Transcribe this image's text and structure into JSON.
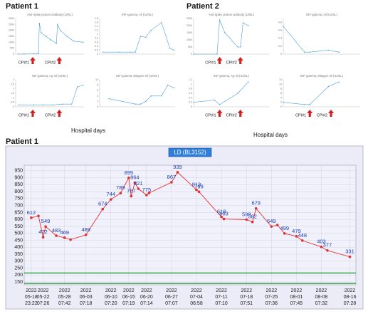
{
  "headings": [
    "Patient 1",
    "Patient 2",
    "Patient 1"
  ],
  "x_axis_notes": [
    "Hospital days",
    "Hospital days"
  ],
  "chart_data": [
    {
      "type": "line",
      "title": "Anti-Spike protein antibody (U/mL)",
      "color": "#4a9fd8",
      "x": [
        4,
        10,
        20,
        25,
        26,
        28,
        33,
        38,
        44,
        45,
        48,
        55,
        62,
        72
      ],
      "values": [
        0,
        10,
        20,
        40,
        2600,
        1800,
        1500,
        1200,
        900,
        2500,
        2000,
        1500,
        1100,
        1000
      ],
      "xlim": [
        1,
        73
      ],
      "ylim": [
        0,
        3000
      ],
      "yticks": [
        0,
        500,
        1000,
        1500,
        2000,
        2500,
        3000
      ],
      "annotations": [
        {
          "label": "CPI#1",
          "x": 19
        },
        {
          "label": "CPI#2",
          "x": 47
        }
      ]
    },
    {
      "type": "line",
      "title": "INF-gamma, nil (IU/mL)",
      "color": "#4a9fd8",
      "x": [
        4,
        20,
        30,
        35,
        40,
        45,
        50,
        60,
        68,
        72
      ],
      "values": [
        0.1,
        0.1,
        0.1,
        0.1,
        0.9,
        0.85,
        1.2,
        1.6,
        0.3,
        0.2
      ],
      "xlim": [
        1,
        73
      ],
      "ylim": [
        0,
        1.8
      ],
      "yticks": [
        0,
        0.2,
        0.4,
        0.6,
        0.8,
        1,
        1.2,
        1.4,
        1.6,
        1.8
      ]
    },
    {
      "type": "line",
      "title": "INF-gamma, Ag-nil (IU/mL)",
      "color": "#4a9fd8",
      "x": [
        4,
        20,
        30,
        40,
        50,
        60,
        66,
        72
      ],
      "values": [
        0.2,
        0.2,
        0.2,
        0.2,
        0.3,
        0.3,
        2.2,
        2.4
      ],
      "xlim": [
        1,
        73
      ],
      "ylim": [
        0,
        3
      ],
      "yticks": [
        0,
        0.5,
        1,
        1.5,
        2,
        2.5,
        3
      ],
      "annotations": [
        {
          "label": "CPI#1",
          "x": 19
        },
        {
          "label": "CPI#2",
          "x": 47
        }
      ]
    },
    {
      "type": "line",
      "title": "INF-gamma, Mitogen-nil (IU/mL)",
      "color": "#4a9fd8",
      "x": [
        10,
        35,
        40,
        45,
        50,
        60,
        66,
        72
      ],
      "values": [
        3,
        1,
        1,
        2,
        4,
        4,
        8,
        7
      ],
      "xlim": [
        1,
        73
      ],
      "ylim": [
        0,
        10
      ],
      "yticks": [
        0,
        2,
        4,
        6,
        8,
        10
      ]
    },
    {
      "type": "line",
      "title": "Anti-Spike protein antibody (U/mL)",
      "color": "#4a9fd8",
      "x": [
        1,
        10,
        11,
        13,
        18,
        19,
        20,
        22
      ],
      "values": [
        0,
        0,
        2400,
        1500,
        500,
        500,
        2200,
        2000
      ],
      "xlim": [
        1,
        30
      ],
      "ylim": [
        0,
        2500
      ],
      "yticks": [
        0,
        500,
        1000,
        1500,
        2000,
        2500
      ],
      "annotations": [
        {
          "label": "CPI#1",
          "x": 11
        },
        {
          "label": "CPI#2",
          "x": 19
        }
      ]
    },
    {
      "type": "line",
      "title": "INF-gamma, nil (IU/mL)",
      "color": "#4a9fd8",
      "x": [
        1,
        9,
        11,
        18,
        22
      ],
      "values": [
        0.7,
        0.05,
        0.05,
        0.1,
        0.05
      ],
      "xlim": [
        1,
        30
      ],
      "ylim": [
        0,
        0.9
      ],
      "yticks": [
        0,
        0.2,
        0.4,
        0.6,
        0.8
      ]
    },
    {
      "type": "line",
      "title": "INF-gamma, Ag-nil (IU/mL)",
      "color": "#4a9fd8",
      "x": [
        1,
        9,
        11,
        18,
        22
      ],
      "values": [
        0.2,
        0.3,
        0.1,
        0.6,
        1.1
      ],
      "xlim": [
        1,
        30
      ],
      "ylim": [
        0,
        1.2
      ],
      "yticks": [
        0,
        0.2,
        0.4,
        0.6,
        0.8,
        1,
        1.2
      ],
      "annotations": [
        {
          "label": "CPI#1",
          "x": 11
        },
        {
          "label": "CPI#2",
          "x": 19
        }
      ]
    },
    {
      "type": "line",
      "title": "INF-gamma, Mitogen-nil (IU/mL)",
      "color": "#4a9fd8",
      "x": [
        1,
        9,
        11,
        18,
        22
      ],
      "values": [
        2,
        1,
        1,
        9,
        11
      ],
      "xlim": [
        1,
        30
      ],
      "ylim": [
        0,
        12
      ],
      "yticks": [
        0,
        2,
        4,
        6,
        8,
        10,
        12
      ],
      "annotations": [
        {
          "label": "CPI#1",
          "x": 11
        },
        {
          "label": "CPI#2",
          "x": 19
        }
      ]
    },
    {
      "type": "line",
      "title": "LD (BL3152)",
      "color": "#e03030",
      "label_color": "#1a3fb0",
      "grid": true,
      "x": [
        "2022-05-18 23:22",
        "2022-05-21",
        "2022-05-22 07:26",
        "2022-05-23",
        "2022-05-26",
        "2022-05-28 07:42",
        "2022-05-30",
        "2022-06-03 07:18",
        "2022-06-08",
        "2022-06-10 07:20",
        "2022-06-13",
        "2022-06-15 07:19",
        "2022-06-16",
        "2022-06-17",
        "2022-06-18",
        "2022-06-20 07:14",
        "2022-06-21",
        "2022-06-27 07:07",
        "2022-06-29",
        "2022-07-04 06:58",
        "2022-07-05",
        "2022-07-11 07:10",
        "2022-07-12",
        "2022-07-18 07:51",
        "2022-07-20",
        "2022-07-21",
        "2022-07-25 07:36",
        "2022-07-27",
        "2022-07-29",
        "2022-08-01 07:45",
        "2022-08-03",
        "2022-08-08 07:32",
        "2022-08-10",
        "2022-08-16 07:28"
      ],
      "values": [
        612,
        625,
        472,
        549,
        483,
        469,
        455,
        489,
        674,
        744,
        789,
        899,
        767,
        864,
        821,
        775,
        790,
        867,
        939,
        813,
        799,
        618,
        603,
        599,
        582,
        679,
        549,
        560,
        499,
        479,
        448,
        403,
        377,
        331
      ],
      "value_labels": [
        "612",
        null,
        "472",
        "549",
        "483",
        "469",
        null,
        "489",
        "674",
        "744",
        "789",
        "899",
        "767",
        "864",
        "821",
        "775",
        null,
        "867",
        "939",
        "813",
        "799",
        "618",
        "603",
        "599",
        "582",
        "679",
        "549",
        null,
        "499",
        "479",
        "448",
        "403",
        "377",
        "331"
      ],
      "xlim": [
        "2022-05-17",
        "2022-08-18"
      ],
      "xticks": [
        {
          "value": "2022-05-18 23:22",
          "label": "2022\n05-18\n23:22"
        },
        {
          "value": "2022-05-22 07:26",
          "label": "2022\n05-22\n07:26"
        },
        {
          "value": "2022-05-28 07:42",
          "label": "2022\n05-28\n07:42"
        },
        {
          "value": "2022-06-03 07:18",
          "label": "2022\n06-03\n07:18"
        },
        {
          "value": "2022-06-10 07:20",
          "label": "2022\n06-10\n07:20"
        },
        {
          "value": "2022-06-15 07:19",
          "label": "2022\n06-15\n07:19"
        },
        {
          "value": "2022-06-20 07:14",
          "label": "2022\n06-20\n07:14"
        },
        {
          "value": "2022-06-27 07:07",
          "label": "2022\n06-27\n07:07"
        },
        {
          "value": "2022-07-04 06:58",
          "label": "2022\n07-04\n06:58"
        },
        {
          "value": "2022-07-11 07:10",
          "label": "2022\n07-11\n07:10"
        },
        {
          "value": "2022-07-18 07:51",
          "label": "2022\n07-18\n07:51"
        },
        {
          "value": "2022-07-25 07:36",
          "label": "2022\n07-25\n07:36"
        },
        {
          "value": "2022-08-01 07:45",
          "label": "2022\n08-01\n07:45"
        },
        {
          "value": "2022-08-08 07:32",
          "label": "2022\n08-08\n07:32"
        },
        {
          "value": "2022-08-16 07:28",
          "label": "2022\n08-16\n07:28"
        }
      ],
      "ylim": [
        130,
        990
      ],
      "yticks": [
        150,
        200,
        250,
        300,
        350,
        400,
        450,
        500,
        550,
        600,
        650,
        700,
        750,
        800,
        850,
        900,
        950
      ],
      "reference_lines": [
        {
          "value": 215,
          "color": "#2a9a3a"
        },
        {
          "value": 140,
          "color": "#2a9a3a"
        }
      ]
    }
  ]
}
